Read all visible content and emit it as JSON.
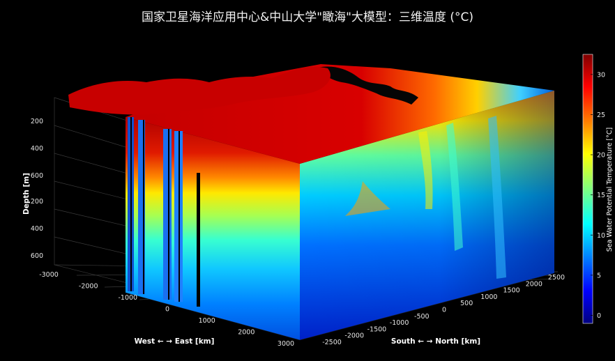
{
  "title": "国家卫星海洋应用中心&中山大学\"瞰海\"大模型：三维温度 (°C)",
  "chart_data": {
    "type": "heatmap",
    "title": "国家卫星海洋应用中心&中山大学\"瞰海\"大模型：三维温度 (°C)",
    "xlabel": "West ← → East [km]",
    "ylabel": "South ← → North [km]",
    "zlabel": "Depth [m]",
    "x_ticks": [
      "-3000",
      "-2000",
      "-1000",
      "0",
      "1000",
      "2000",
      "3000"
    ],
    "y_ticks": [
      "-2500",
      "-2000",
      "-1500",
      "-1000",
      "-500",
      "0",
      "500",
      "1000",
      "1500",
      "2000",
      "2500"
    ],
    "z_ticks_upper": [
      "200",
      "400",
      "600"
    ],
    "z_ticks_lower": [
      "200",
      "400",
      "600"
    ],
    "xlim": [
      -3000,
      3000
    ],
    "ylim": [
      -2500,
      2500
    ],
    "colorbar": {
      "label": "Sea Water Potential Temperature [°C]",
      "ticks": [
        "30",
        "25",
        "20",
        "15",
        "10",
        "5",
        "0"
      ],
      "range": [
        -1,
        32.5
      ],
      "colormap": [
        "#00007f",
        "#0000ff",
        "#007fff",
        "#00ffff",
        "#7fff7f",
        "#ffff00",
        "#ff7f00",
        "#ff0000",
        "#7f0000"
      ]
    },
    "grid": true
  }
}
